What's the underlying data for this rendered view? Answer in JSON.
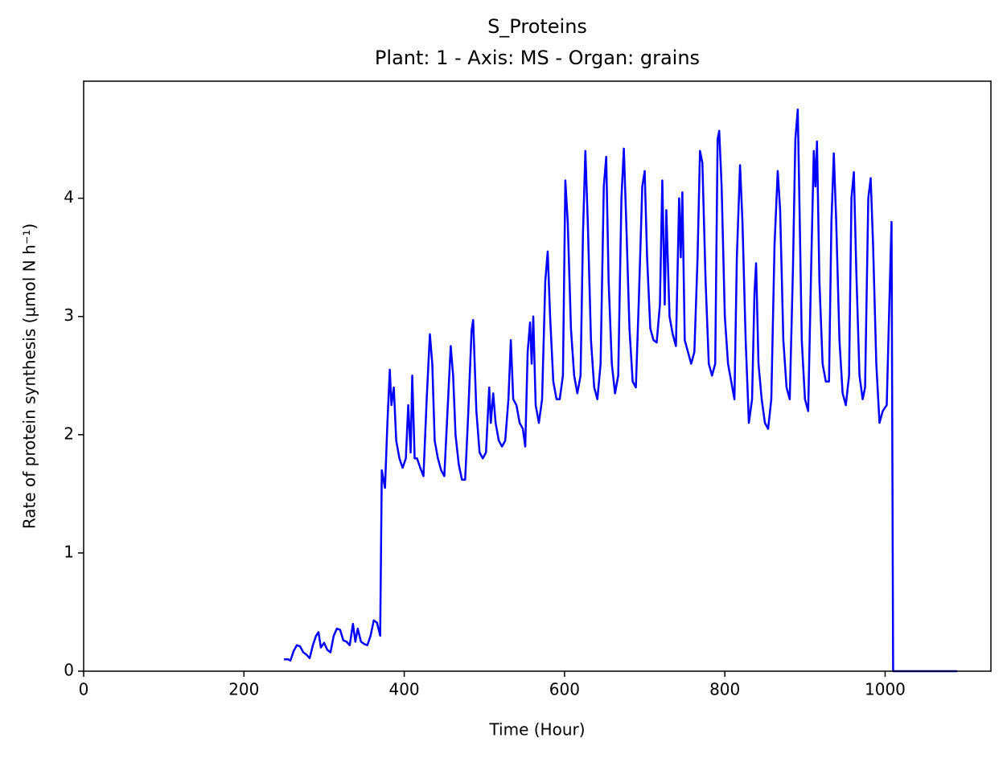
{
  "chart_data": {
    "type": "line",
    "title": "S_Proteins",
    "subtitle": "Plant: 1 - Axis: MS - Organ: grains",
    "x_label": "Time (Hour)",
    "y_label": "Rate of protein synthesis (µmol N h⁻¹)",
    "xlim": [
      0,
      1132
    ],
    "ylim": [
      0,
      4.99
    ],
    "xticks": [
      0,
      200,
      400,
      600,
      800,
      1000
    ],
    "yticks": [
      0,
      1,
      2,
      3,
      4
    ],
    "grid": false,
    "x": [
      250,
      255,
      258,
      262,
      266,
      270,
      274,
      278,
      282,
      286,
      290,
      293,
      296,
      300,
      304,
      308,
      312,
      316,
      320,
      324,
      328,
      332,
      336,
      339,
      342,
      346,
      350,
      354,
      358,
      362,
      366,
      370,
      372,
      376,
      379,
      382,
      384,
      387,
      390,
      394,
      398,
      402,
      405,
      408,
      410,
      413,
      416,
      420,
      424,
      428,
      432,
      435,
      438,
      442,
      446,
      450,
      454,
      458,
      461,
      464,
      468,
      472,
      476,
      480,
      484,
      486,
      490,
      494,
      498,
      502,
      506,
      508,
      511,
      514,
      518,
      522,
      526,
      530,
      533,
      536,
      540,
      544,
      548,
      551,
      554,
      557,
      559,
      561,
      564,
      568,
      572,
      576,
      579,
      582,
      586,
      590,
      594,
      598,
      601,
      604,
      608,
      612,
      616,
      620,
      623,
      626,
      629,
      633,
      637,
      641,
      645,
      649,
      652,
      655,
      659,
      663,
      667,
      671,
      674,
      677,
      681,
      685,
      689,
      693,
      697,
      700,
      703,
      707,
      711,
      715,
      719,
      722,
      725,
      727,
      731,
      735,
      739,
      743,
      745,
      747,
      750,
      754,
      758,
      762,
      766,
      769,
      772,
      776,
      780,
      784,
      788,
      791,
      793,
      796,
      800,
      804,
      808,
      812,
      815,
      819,
      822,
      826,
      830,
      834,
      837,
      839,
      842,
      846,
      850,
      854,
      858,
      862,
      866,
      869,
      873,
      877,
      881,
      885,
      888,
      891,
      893,
      896,
      900,
      904,
      908,
      911,
      913,
      915,
      918,
      922,
      926,
      930,
      933,
      936,
      939,
      943,
      947,
      951,
      955,
      958,
      961,
      964,
      968,
      972,
      975,
      979,
      982,
      985,
      989,
      993,
      997,
      1002,
      1006,
      1008,
      1010,
      1020,
      1090
    ],
    "series": [
      {
        "color": "#0000ff",
        "values": [
          0.1,
          0.1,
          0.09,
          0.17,
          0.22,
          0.21,
          0.16,
          0.14,
          0.11,
          0.22,
          0.3,
          0.33,
          0.2,
          0.24,
          0.18,
          0.16,
          0.3,
          0.36,
          0.35,
          0.26,
          0.25,
          0.22,
          0.4,
          0.25,
          0.36,
          0.25,
          0.23,
          0.22,
          0.3,
          0.43,
          0.41,
          0.3,
          1.7,
          1.55,
          2.1,
          2.55,
          2.25,
          2.4,
          1.95,
          1.8,
          1.72,
          1.8,
          2.25,
          1.85,
          2.5,
          1.8,
          1.8,
          1.72,
          1.65,
          2.3,
          2.85,
          2.6,
          1.95,
          1.8,
          1.7,
          1.65,
          2.2,
          2.75,
          2.5,
          2.0,
          1.75,
          1.62,
          1.62,
          2.2,
          2.88,
          2.97,
          2.2,
          1.85,
          1.8,
          1.85,
          2.4,
          2.1,
          2.35,
          2.1,
          1.95,
          1.9,
          1.95,
          2.3,
          2.8,
          2.3,
          2.25,
          2.1,
          2.05,
          1.9,
          2.7,
          2.95,
          2.6,
          3.0,
          2.25,
          2.1,
          2.3,
          3.3,
          3.55,
          3.0,
          2.45,
          2.3,
          2.3,
          2.5,
          4.15,
          3.8,
          2.9,
          2.5,
          2.35,
          2.5,
          3.7,
          4.4,
          3.8,
          2.8,
          2.4,
          2.3,
          2.6,
          4.1,
          4.35,
          3.3,
          2.6,
          2.35,
          2.5,
          4.0,
          4.42,
          3.8,
          2.9,
          2.45,
          2.4,
          3.2,
          4.1,
          4.23,
          3.5,
          2.9,
          2.8,
          2.78,
          3.1,
          4.15,
          3.1,
          3.9,
          3.0,
          2.85,
          2.75,
          4.0,
          3.5,
          4.05,
          2.8,
          2.7,
          2.6,
          2.7,
          3.5,
          4.4,
          4.3,
          3.3,
          2.6,
          2.5,
          2.6,
          4.5,
          4.57,
          4.1,
          3.0,
          2.6,
          2.45,
          2.3,
          3.5,
          4.28,
          3.8,
          2.8,
          2.1,
          2.3,
          3.2,
          3.45,
          2.6,
          2.3,
          2.1,
          2.05,
          2.3,
          3.6,
          4.23,
          3.9,
          2.8,
          2.4,
          2.3,
          3.4,
          4.5,
          4.75,
          4.0,
          2.8,
          2.3,
          2.2,
          3.5,
          4.4,
          4.1,
          4.48,
          3.3,
          2.6,
          2.45,
          2.45,
          3.8,
          4.38,
          3.8,
          2.8,
          2.35,
          2.25,
          2.5,
          4.0,
          4.22,
          3.4,
          2.5,
          2.3,
          2.4,
          4.0,
          4.17,
          3.6,
          2.6,
          2.1,
          2.2,
          2.25,
          3.3,
          3.8,
          0,
          0,
          0
        ]
      }
    ]
  }
}
